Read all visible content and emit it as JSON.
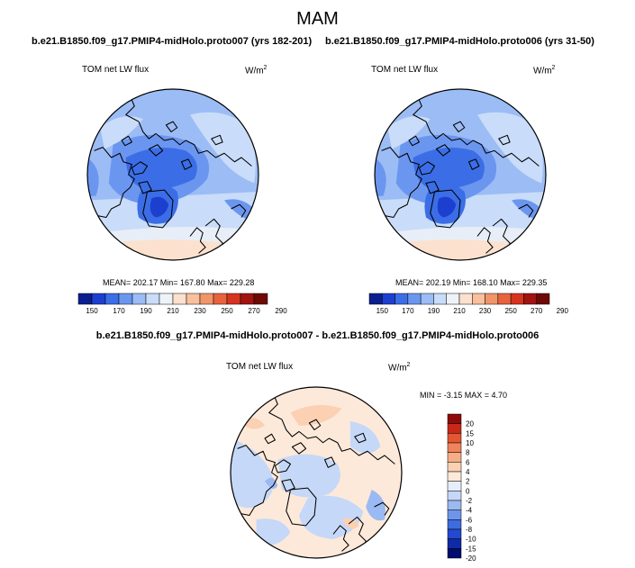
{
  "page": {
    "title": "MAM",
    "diff_title": "b.e21.B1850.f09_g17.PMIP4-midHolo.proto007 - b.e21.B1850.f09_g17.PMIP4-midHolo.proto006"
  },
  "colors": {
    "abs_scale": [
      "#0a1f8f",
      "#1d3fcf",
      "#3b6ee6",
      "#6b96ef",
      "#9cbcf5",
      "#c9dcf9",
      "#eef3f9",
      "#fbe1ce",
      "#f8c09c",
      "#f29469",
      "#e8623e",
      "#d6341f",
      "#a11410",
      "#6e0906"
    ],
    "diff_scale": [
      "#000c6f",
      "#0f2aa7",
      "#2349d0",
      "#3d6be0",
      "#6e95ea",
      "#9bb9f2",
      "#c6d8f7",
      "#e6eefa",
      "#fde9da",
      "#fbd0b3",
      "#f7ad86",
      "#f0835b",
      "#e45532",
      "#c92817",
      "#8e0b07"
    ],
    "coastline": "#000000"
  },
  "chart_data": [
    {
      "type": "heatmap",
      "projection": "polar-stereographic-north",
      "title": "b.e21.B1850.f09_g17.PMIP4-midHolo.proto007 (yrs 182-201)",
      "variable": "TOM net LW flux",
      "units_base": "W/m",
      "units_exp": "2",
      "stats_text": "MEAN= 202.17  Min= 167.80  Max= 229.28",
      "mean": 202.17,
      "min": 167.8,
      "max": 229.28,
      "colorbar": {
        "orientation": "horizontal",
        "ticks": [
          "150",
          "170",
          "190",
          "210",
          "230",
          "250",
          "270",
          "290"
        ]
      }
    },
    {
      "type": "heatmap",
      "projection": "polar-stereographic-north",
      "title": "b.e21.B1850.f09_g17.PMIP4-midHolo.proto006 (yrs 31-50)",
      "variable": "TOM net LW flux",
      "units_base": "W/m",
      "units_exp": "2",
      "stats_text": "MEAN= 202.19  Min= 168.10  Max= 229.35",
      "mean": 202.19,
      "min": 168.1,
      "max": 229.35,
      "colorbar": {
        "orientation": "horizontal",
        "ticks": [
          "150",
          "170",
          "190",
          "210",
          "230",
          "250",
          "270",
          "290"
        ]
      }
    },
    {
      "type": "heatmap",
      "projection": "polar-stereographic-north",
      "title": "b.e21.B1850.f09_g17.PMIP4-midHolo.proto007 - b.e21.B1850.f09_g17.PMIP4-midHolo.proto006",
      "variable": "TOM net LW flux",
      "units_base": "W/m",
      "units_exp": "2",
      "stats_text": "MIN =  -3.15 MAX =   4.70",
      "min": -3.15,
      "max": 4.7,
      "colorbar": {
        "orientation": "vertical",
        "ticks": [
          "20",
          "15",
          "10",
          "8",
          "6",
          "4",
          "2",
          "0",
          "-2",
          "-4",
          "-6",
          "-8",
          "-10",
          "-15",
          "-20"
        ]
      }
    }
  ]
}
